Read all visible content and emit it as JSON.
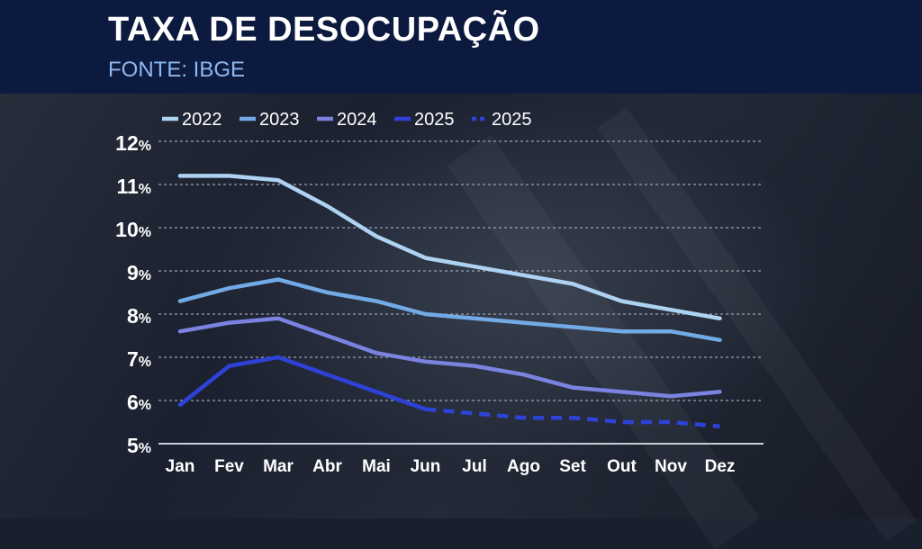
{
  "header": {
    "title": "TAXA DE DESOCUPAÇÃO",
    "source": "FONTE: IBGE"
  },
  "chart_data": {
    "type": "line",
    "title": "TAXA DE DESOCUPAÇÃO",
    "subtitle": "FONTE: IBGE",
    "categories": [
      "Jan",
      "Fev",
      "Mar",
      "Abr",
      "Mai",
      "Jun",
      "Jul",
      "Ago",
      "Set",
      "Out",
      "Nov",
      "Dez"
    ],
    "y_ticks": [
      "5%",
      "6%",
      "7%",
      "8%",
      "9%",
      "10%",
      "11%",
      "12%"
    ],
    "ylim": [
      5,
      12
    ],
    "grid": "horizontal-dashed",
    "legend_position": "top",
    "series": [
      {
        "name": "2022",
        "color": "#aed3f2",
        "dash": false,
        "values": [
          11.2,
          11.2,
          11.1,
          10.5,
          9.8,
          9.3,
          9.1,
          8.9,
          8.7,
          8.3,
          8.1,
          7.9
        ]
      },
      {
        "name": "2023",
        "color": "#72aae6",
        "dash": false,
        "values": [
          8.3,
          8.6,
          8.8,
          8.5,
          8.3,
          8.0,
          7.9,
          7.8,
          7.7,
          7.6,
          7.6,
          7.4
        ]
      },
      {
        "name": "2024",
        "color": "#7a83e0",
        "dash": false,
        "values": [
          7.6,
          7.8,
          7.9,
          7.5,
          7.1,
          6.9,
          6.8,
          6.6,
          6.3,
          6.2,
          6.1,
          6.2
        ]
      },
      {
        "name": "2025",
        "color": "#2d43d8",
        "dash": false,
        "values": [
          5.9,
          6.8,
          7.0,
          6.6,
          6.2,
          5.8,
          null,
          null,
          null,
          null,
          null,
          null
        ]
      },
      {
        "name": "2025",
        "color": "#2d43d8",
        "dash": true,
        "values": [
          null,
          null,
          null,
          null,
          null,
          5.8,
          5.7,
          5.6,
          5.6,
          5.5,
          5.5,
          5.4
        ]
      }
    ]
  }
}
